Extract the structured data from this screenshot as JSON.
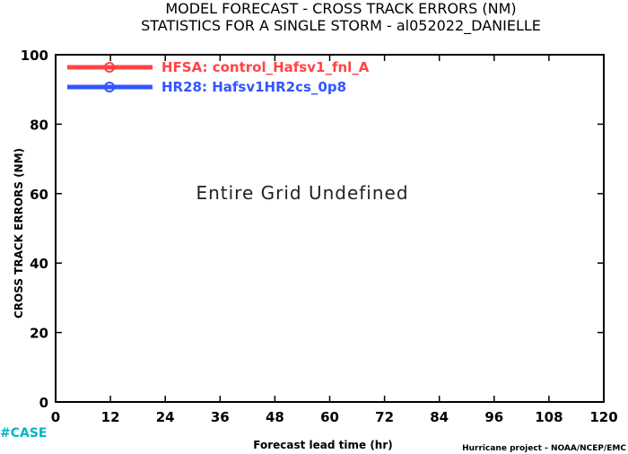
{
  "chart_data": {
    "type": "line",
    "title": "MODEL FORECAST - CROSS TRACK ERRORS (NM)",
    "subtitle": "STATISTICS FOR A SINGLE STORM - al052022_DANIELLE",
    "xlabel": "Forecast lead time (hr)",
    "ylabel": "CROSS TRACK ERRORS (NM)",
    "xlim": [
      0,
      120
    ],
    "ylim": [
      0,
      100
    ],
    "x_ticks": [
      0,
      12,
      24,
      36,
      48,
      60,
      72,
      84,
      96,
      108,
      120
    ],
    "y_ticks": [
      0,
      20,
      40,
      60,
      80,
      100
    ],
    "grid": false,
    "legend_position": "top-left",
    "series": [
      {
        "name": "HFSA:  control_Hafsv1_fnl_A",
        "color": "#ff4444",
        "values": []
      },
      {
        "name": "HR28:  Hafsv1HR2cs_0p8",
        "color": "#3355ff",
        "values": []
      }
    ],
    "annotation": "Entire Grid Undefined"
  },
  "footer": {
    "case_label": "#CASE",
    "credit": "Hurricane project - NOAA/NCEP/EMC"
  }
}
